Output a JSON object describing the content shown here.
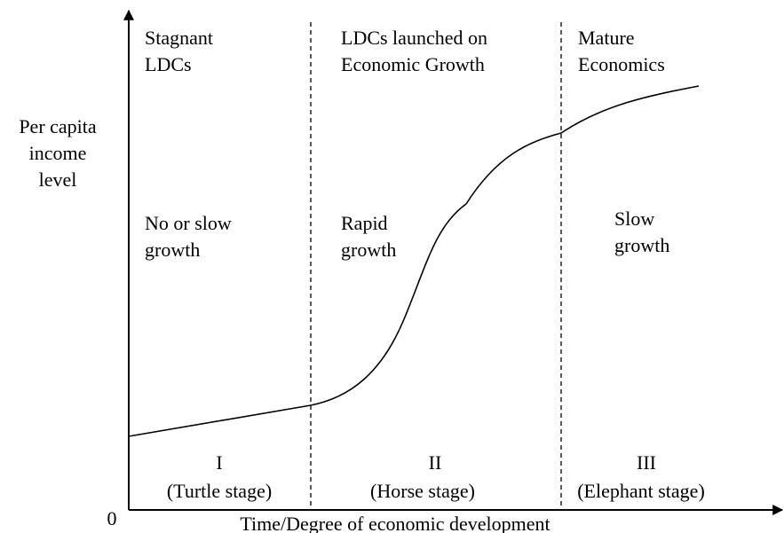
{
  "y_axis_label": [
    "Per capita",
    "income",
    "level"
  ],
  "x_axis_label": "Time/Degree of economic development",
  "origin_label": "0",
  "stages": [
    {
      "heading": [
        "Stagnant",
        "LDCs"
      ],
      "growth": [
        "No or slow",
        "growth"
      ],
      "numeral": "I",
      "name": "(Turtle stage)"
    },
    {
      "heading": [
        "LDCs launched on",
        "Economic Growth"
      ],
      "growth": [
        "Rapid",
        "growth"
      ],
      "numeral": "II",
      "name": "(Horse stage)"
    },
    {
      "heading": [
        "Mature",
        "Economics"
      ],
      "growth": [
        "Slow",
        "growth"
      ],
      "numeral": "III",
      "name": "(Elephant stage)"
    }
  ]
}
